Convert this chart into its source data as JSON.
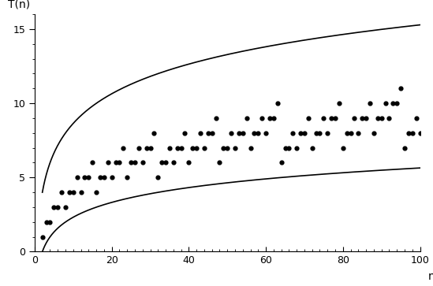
{
  "title_ylabel": "T(n)",
  "xlabel": "n",
  "xlim": [
    0,
    100
  ],
  "ylim": [
    0,
    16
  ],
  "yticks": [
    0,
    5,
    10,
    15
  ],
  "xticks": [
    0,
    20,
    40,
    60,
    80,
    100
  ],
  "line_color": "#000000",
  "dot_color": "#000000",
  "background_color": "#ffffff",
  "dot_size": 12,
  "line_width": 1.2
}
